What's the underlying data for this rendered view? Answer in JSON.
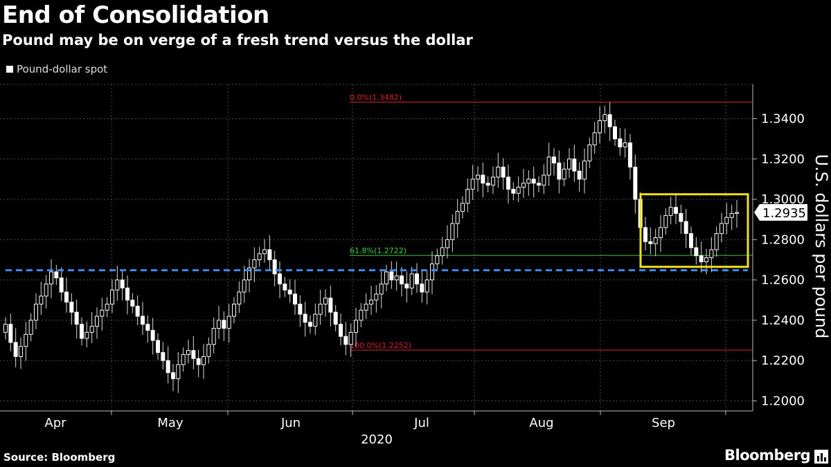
{
  "title": "End of Consolidation",
  "subtitle": "Pound may be on verge of a fresh trend versus the dollar",
  "legend": "Pound-dollar spot",
  "source": "Source: Bloomberg",
  "brand": "Bloomberg",
  "chart_data": {
    "type": "candlestick",
    "series_name": "Pound-dollar spot",
    "ylabel": "U.S. dollars per pound",
    "ylim": [
      1.195,
      1.357
    ],
    "y_ticks": [
      "1.2000",
      "1.2200",
      "1.2400",
      "1.2600",
      "1.2800",
      "1.3000",
      "1.3200",
      "1.3400"
    ],
    "x_tick_labels": [
      "Apr",
      "May",
      "Jun",
      "Jul",
      "Aug",
      "Sep"
    ],
    "x_year_label": "2020",
    "last_value_label": "1.2935",
    "grid": true,
    "fib_levels": [
      {
        "label": "0.0%(1.3482)",
        "value": 1.3482,
        "color": "#e01f2f"
      },
      {
        "label": "61.8%(1.2722)",
        "value": 1.2722,
        "color": "#3ecf3e"
      },
      {
        "label": "100.0%(1.2252)",
        "value": 1.2252,
        "color": "#e01f2f"
      }
    ],
    "support_line": {
      "value": 1.2648,
      "color": "#3b8bf5",
      "style": "dashed"
    },
    "highlight_box": {
      "y_range": [
        1.2665,
        1.3025
      ],
      "color": "#f2e01c",
      "period": "Sep"
    },
    "closes": [
      1.238,
      1.229,
      1.222,
      1.227,
      1.233,
      1.24,
      1.248,
      1.252,
      1.258,
      1.264,
      1.261,
      1.254,
      1.249,
      1.244,
      1.238,
      1.231,
      1.234,
      1.237,
      1.242,
      1.245,
      1.248,
      1.255,
      1.26,
      1.256,
      1.25,
      1.247,
      1.242,
      1.238,
      1.235,
      1.23,
      1.224,
      1.22,
      1.214,
      1.211,
      1.218,
      1.223,
      1.225,
      1.221,
      1.218,
      1.222,
      1.228,
      1.236,
      1.24,
      1.236,
      1.242,
      1.248,
      1.254,
      1.26,
      1.266,
      1.27,
      1.273,
      1.275,
      1.27,
      1.263,
      1.258,
      1.255,
      1.253,
      1.248,
      1.243,
      1.239,
      1.237,
      1.243,
      1.248,
      1.251,
      1.244,
      1.238,
      1.232,
      1.228,
      1.234,
      1.24,
      1.245,
      1.248,
      1.25,
      1.253,
      1.258,
      1.264,
      1.26,
      1.262,
      1.258,
      1.256,
      1.263,
      1.258,
      1.254,
      1.26,
      1.268,
      1.272,
      1.276,
      1.28,
      1.288,
      1.294,
      1.298,
      1.305,
      1.31,
      1.312,
      1.308,
      1.307,
      1.311,
      1.316,
      1.311,
      1.305,
      1.303,
      1.306,
      1.308,
      1.31,
      1.308,
      1.307,
      1.312,
      1.321,
      1.318,
      1.31,
      1.315,
      1.32,
      1.314,
      1.31,
      1.319,
      1.327,
      1.333,
      1.339,
      1.342,
      1.336,
      1.33,
      1.326,
      1.328,
      1.316,
      1.3,
      1.286,
      1.279,
      1.278,
      1.281,
      1.286,
      1.292,
      1.296,
      1.293,
      1.289,
      1.283,
      1.276,
      1.272,
      1.269,
      1.271,
      1.275,
      1.283,
      1.288,
      1.291,
      1.293,
      1.2935
    ]
  }
}
